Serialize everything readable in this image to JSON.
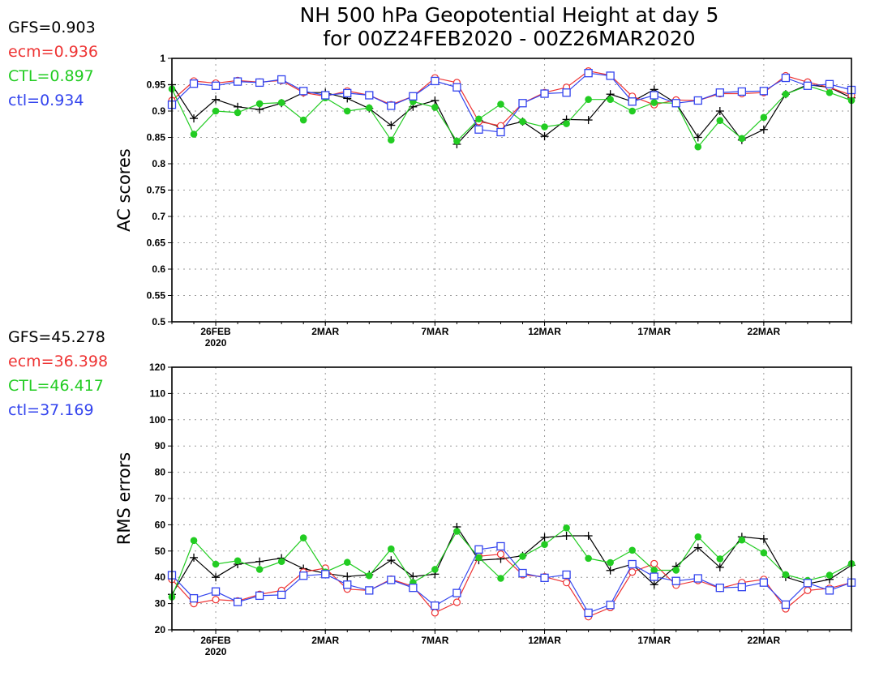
{
  "title_line1": "NH 500 hPa Geopotential Height at day 5",
  "title_line2": "for 00Z24FEB2020 - 00Z26MAR2020",
  "colors": {
    "GFS": "#000000",
    "ecm": "#ee3333",
    "CTL": "#22cc22",
    "ctl": "#3344ee"
  },
  "x_ticks": [
    {
      "day": 2,
      "label": "26FEB",
      "sublabel": "2020"
    },
    {
      "day": 7,
      "label": "2MAR"
    },
    {
      "day": 12,
      "label": "7MAR"
    },
    {
      "day": 17,
      "label": "12MAR"
    },
    {
      "day": 22,
      "label": "17MAR"
    },
    {
      "day": 27,
      "label": "22MAR"
    }
  ],
  "chart_data": [
    {
      "type": "line",
      "ylabel": "AC scores",
      "ylim": [
        0.5,
        1
      ],
      "yticks": [
        0.5,
        0.55,
        0.6,
        0.65,
        0.7,
        0.75,
        0.8,
        0.85,
        0.9,
        0.95,
        1
      ],
      "yticklabels": [
        "0.5",
        "0.55",
        "0.6",
        "0.65",
        "0.7",
        "0.75",
        "0.8",
        "0.85",
        "0.9",
        "0.95",
        "1"
      ],
      "xlim": [
        0,
        31
      ],
      "x_start": "2020-02-24",
      "grid": true,
      "stats": [
        {
          "series": "GFS",
          "label": "GFS=0.903"
        },
        {
          "series": "ecm",
          "label": "ecm=0.936"
        },
        {
          "series": "CTL",
          "label": "CTL=0.897"
        },
        {
          "series": "ctl",
          "label": "ctl=0.934"
        }
      ],
      "series": [
        {
          "name": "GFS",
          "marker": "plus",
          "values": [
            0.95,
            0.886,
            0.922,
            0.908,
            0.903,
            0.915,
            0.935,
            0.935,
            0.924,
            0.905,
            0.873,
            0.908,
            0.92,
            0.837,
            0.882,
            0.87,
            0.88,
            0.852,
            0.884,
            0.883,
            0.932,
            0.918,
            0.941,
            0.915,
            0.85,
            0.9,
            0.845,
            0.865,
            0.932,
            0.95,
            0.945,
            0.925
          ]
        },
        {
          "name": "ecm",
          "marker": "circle",
          "values": [
            0.92,
            0.957,
            0.953,
            0.958,
            0.955,
            0.958,
            0.935,
            0.928,
            0.938,
            0.93,
            0.912,
            0.928,
            0.963,
            0.954,
            0.88,
            0.872,
            0.915,
            0.935,
            0.945,
            0.976,
            0.968,
            0.928,
            0.912,
            0.921,
            0.92,
            0.933,
            0.933,
            0.935,
            0.967,
            0.955,
            0.945,
            0.93
          ]
        },
        {
          "name": "CTL",
          "marker": "dot",
          "values": [
            0.942,
            0.856,
            0.9,
            0.897,
            0.914,
            0.916,
            0.883,
            0.925,
            0.9,
            0.906,
            0.845,
            0.918,
            0.907,
            0.843,
            0.885,
            0.913,
            0.88,
            0.87,
            0.876,
            0.922,
            0.922,
            0.9,
            0.916,
            0.915,
            0.832,
            0.882,
            0.848,
            0.888,
            0.932,
            0.948,
            0.935,
            0.92
          ]
        },
        {
          "name": "ctl",
          "marker": "square",
          "values": [
            0.912,
            0.952,
            0.948,
            0.956,
            0.954,
            0.96,
            0.938,
            0.93,
            0.934,
            0.93,
            0.91,
            0.928,
            0.957,
            0.945,
            0.865,
            0.86,
            0.915,
            0.933,
            0.935,
            0.972,
            0.967,
            0.918,
            0.93,
            0.915,
            0.92,
            0.935,
            0.937,
            0.938,
            0.963,
            0.948,
            0.951,
            0.94
          ]
        }
      ]
    },
    {
      "type": "line",
      "ylabel": "RMS errors",
      "ylim": [
        20,
        120
      ],
      "yticks": [
        20,
        30,
        40,
        50,
        60,
        70,
        80,
        90,
        100,
        110,
        120
      ],
      "yticklabels": [
        "20",
        "30",
        "40",
        "50",
        "60",
        "70",
        "80",
        "90",
        "100",
        "110",
        "120"
      ],
      "xlim": [
        0,
        31
      ],
      "x_start": "2020-02-24",
      "grid": true,
      "stats": [
        {
          "series": "GFS",
          "label": "GFS=45.278"
        },
        {
          "series": "ecm",
          "label": "ecm=36.398"
        },
        {
          "series": "CTL",
          "label": "CTL=46.417"
        },
        {
          "series": "ctl",
          "label": "ctl=37.169"
        }
      ],
      "series": [
        {
          "name": "GFS",
          "marker": "plus",
          "values": [
            33.5,
            47.5,
            40.0,
            45.0,
            46.0,
            47.3,
            43.3,
            41.5,
            40.3,
            41.0,
            46.5,
            40.3,
            41.2,
            59.2,
            46.5,
            47.0,
            48.2,
            55.2,
            55.8,
            55.8,
            42.6,
            45.0,
            37.2,
            44.2,
            51.3,
            43.8,
            55.4,
            54.6,
            40.1,
            37.5,
            39.2,
            44.6
          ]
        },
        {
          "name": "ecm",
          "marker": "circle",
          "values": [
            39.2,
            30.0,
            31.5,
            31.0,
            33.5,
            35.0,
            42.0,
            43.5,
            35.5,
            35.0,
            39.3,
            36.5,
            26.5,
            30.5,
            48.0,
            48.8,
            41.0,
            40.2,
            38.0,
            25.0,
            28.5,
            42.0,
            45.2,
            37.0,
            38.8,
            35.8,
            38.0,
            39.2,
            28.0,
            35.0,
            35.8,
            38.0
          ]
        },
        {
          "name": "CTL",
          "marker": "dot",
          "values": [
            32.5,
            54.0,
            45.0,
            46.3,
            43.0,
            46.0,
            55.0,
            42.0,
            45.7,
            40.6,
            50.8,
            38.0,
            43.0,
            57.5,
            47.5,
            39.6,
            48.0,
            52.5,
            58.8,
            47.2,
            45.6,
            50.3,
            42.7,
            42.7,
            55.4,
            47.0,
            54.2,
            49.3,
            41.0,
            38.8,
            40.8,
            45.2
          ]
        },
        {
          "name": "ctl",
          "marker": "square",
          "values": [
            40.8,
            32.0,
            34.6,
            30.6,
            33.0,
            33.3,
            40.6,
            41.2,
            37.2,
            35.0,
            39.0,
            36.0,
            29.2,
            34.0,
            50.6,
            51.8,
            41.6,
            39.8,
            41.0,
            26.5,
            29.5,
            45.0,
            40.2,
            38.6,
            39.6,
            36.0,
            36.3,
            38.0,
            29.6,
            37.8,
            35.0,
            38.0
          ]
        }
      ]
    }
  ]
}
